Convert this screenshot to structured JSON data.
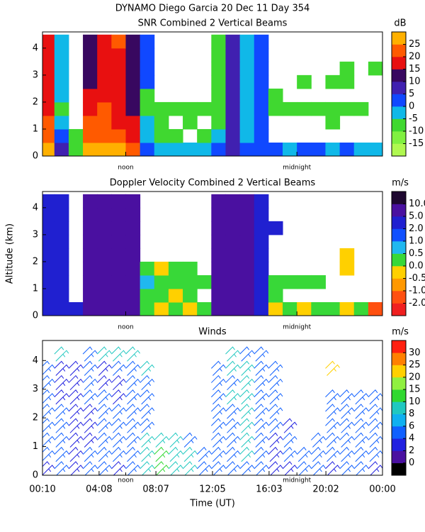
{
  "title": "DYNAMO Diego Garcia  20 Dec 11 Day 354",
  "chart_data": [
    {
      "type": "heatmap",
      "title": "SNR Combined 2 Vertical Beams",
      "units": "dB",
      "x": [
        0.5,
        1.5,
        2.5,
        3.5,
        4.5,
        5.5,
        6.5,
        7.5,
        8.5,
        9.5,
        10.5,
        11.5,
        12.5,
        13.5,
        14.5,
        15.5,
        16.5,
        17.5,
        18.5,
        19.5,
        20.5,
        21.5,
        22.5,
        23.5
      ],
      "altitudes": [
        0.25,
        0.75,
        1.25,
        1.75,
        2.25,
        2.75,
        3.25,
        3.75,
        4.25
      ],
      "values": [
        [
          25,
          5,
          -10,
          25,
          25,
          25,
          20,
          0,
          -5,
          -5,
          -5,
          -5,
          0,
          5,
          0,
          0,
          0,
          -5,
          0,
          0,
          -5,
          0,
          -5,
          -5
        ],
        [
          20,
          0,
          -10,
          20,
          20,
          20,
          15,
          -5,
          -10,
          -10,
          null,
          -10,
          -5,
          5,
          -5,
          0,
          null,
          null,
          null,
          null,
          null,
          null,
          null,
          null
        ],
        [
          20,
          -5,
          null,
          20,
          20,
          15,
          15,
          -5,
          -10,
          null,
          -10,
          null,
          -10,
          5,
          -5,
          0,
          null,
          null,
          null,
          null,
          -10,
          null,
          null,
          null
        ],
        [
          15,
          -10,
          null,
          15,
          20,
          15,
          10,
          -10,
          -10,
          -10,
          -10,
          -10,
          -10,
          5,
          -5,
          0,
          -10,
          -10,
          -10,
          -10,
          -10,
          -10,
          -10,
          null
        ],
        [
          15,
          -5,
          null,
          15,
          15,
          15,
          10,
          -10,
          null,
          null,
          null,
          null,
          -10,
          5,
          -5,
          0,
          -10,
          null,
          null,
          null,
          null,
          null,
          null,
          null
        ],
        [
          15,
          -5,
          null,
          10,
          15,
          15,
          10,
          0,
          null,
          null,
          null,
          null,
          -10,
          5,
          -5,
          0,
          null,
          null,
          -10,
          null,
          -10,
          -10,
          null,
          null
        ],
        [
          15,
          -5,
          null,
          10,
          15,
          15,
          10,
          0,
          null,
          null,
          null,
          null,
          -10,
          5,
          -5,
          0,
          null,
          null,
          null,
          null,
          null,
          -10,
          null,
          -10
        ],
        [
          15,
          -5,
          null,
          10,
          15,
          15,
          10,
          0,
          null,
          null,
          null,
          null,
          -10,
          5,
          -5,
          0,
          null,
          null,
          null,
          null,
          null,
          null,
          null,
          null
        ],
        [
          15,
          -5,
          null,
          10,
          15,
          20,
          10,
          0,
          null,
          null,
          null,
          null,
          -10,
          5,
          -5,
          0,
          null,
          null,
          null,
          null,
          null,
          null,
          null,
          null
        ]
      ],
      "xlim": [
        0.1667,
        24
      ],
      "ylim": [
        0,
        4.6
      ],
      "xticks": [
        {
          "value": 6,
          "label": "noon"
        },
        {
          "value": 18,
          "label": "midnight"
        }
      ],
      "yticks": [
        0,
        1,
        2,
        3,
        4
      ],
      "colorbar": {
        "ticks": [
          -15,
          -10,
          -5,
          0,
          5,
          10,
          15,
          20,
          25
        ],
        "colors": [
          "#b0f850",
          "#80f040",
          "#40d830",
          "#10b8e8",
          "#1048ff",
          "#4020b0",
          "#380860",
          "#e81010",
          "#ff5a00",
          "#ffb000"
        ]
      }
    },
    {
      "type": "heatmap",
      "title": "Doppler Velocity Combined 2 Vertical Beams",
      "units": "m/s",
      "ylabel": "Altitude (km)",
      "x": [
        0.5,
        1.5,
        2.5,
        3.5,
        4.5,
        5.5,
        6.5,
        7.5,
        8.5,
        9.5,
        10.5,
        11.5,
        12.5,
        13.5,
        14.5,
        15.5,
        16.5,
        17.5,
        18.5,
        19.5,
        20.5,
        21.5,
        22.5,
        23.5
      ],
      "altitudes": [
        0.25,
        0.75,
        1.25,
        1.75,
        2.25,
        2.75,
        3.25,
        3.75,
        4.25
      ],
      "values": [
        [
          3,
          3,
          3,
          7,
          7,
          7,
          7,
          0.25,
          -0.25,
          0.25,
          -0.25,
          0.25,
          7,
          7,
          7,
          3,
          -0.25,
          0.25,
          -0.25,
          0.25,
          0.25,
          -0.25,
          0.25,
          -1.5
        ],
        [
          3,
          3,
          null,
          7,
          7,
          7,
          7,
          0.25,
          0.25,
          -0.25,
          0.25,
          null,
          7,
          7,
          7,
          3,
          0.25,
          null,
          null,
          null,
          null,
          null,
          null,
          null
        ],
        [
          3,
          3,
          null,
          7,
          7,
          7,
          7,
          0.75,
          0.25,
          0.25,
          0.25,
          0.25,
          7,
          7,
          7,
          3,
          0.25,
          0.25,
          0.25,
          0.25,
          null,
          null,
          null,
          null
        ],
        [
          3,
          3,
          null,
          7,
          7,
          7,
          7,
          0.25,
          -0.25,
          0.25,
          0.25,
          null,
          7,
          7,
          7,
          3,
          null,
          null,
          null,
          null,
          null,
          -0.25,
          null,
          null
        ],
        [
          3,
          3,
          null,
          7,
          7,
          7,
          7,
          null,
          null,
          null,
          null,
          null,
          7,
          7,
          7,
          3,
          null,
          null,
          null,
          null,
          null,
          -0.25,
          null,
          null
        ],
        [
          3,
          3,
          null,
          7,
          7,
          7,
          7,
          null,
          null,
          null,
          null,
          null,
          7,
          7,
          7,
          3,
          null,
          null,
          null,
          null,
          null,
          null,
          null,
          null
        ],
        [
          3,
          3,
          null,
          7,
          7,
          7,
          7,
          null,
          null,
          null,
          null,
          null,
          7,
          7,
          7,
          3,
          3,
          null,
          null,
          null,
          null,
          null,
          null,
          null
        ],
        [
          3,
          3,
          null,
          7,
          7,
          7,
          7,
          null,
          null,
          null,
          null,
          null,
          7,
          7,
          7,
          3,
          null,
          null,
          null,
          null,
          null,
          null,
          null,
          null
        ],
        [
          3,
          3,
          null,
          7,
          7,
          7,
          7,
          null,
          null,
          null,
          null,
          null,
          7,
          7,
          7,
          3,
          null,
          null,
          null,
          null,
          null,
          null,
          null,
          null
        ]
      ],
      "xlim": [
        0.1667,
        24
      ],
      "ylim": [
        0,
        4.6
      ],
      "xticks": [
        {
          "value": 6,
          "label": "noon"
        },
        {
          "value": 18,
          "label": "midnight"
        }
      ],
      "yticks": [
        0,
        1,
        2,
        3,
        4
      ],
      "colorbar": {
        "ticks": [
          {
            "value": -2,
            "label": "-2.0"
          },
          {
            "value": -1,
            "label": "-1.0"
          },
          -0.5,
          {
            "value": 0,
            "label": "0.0"
          },
          0.5,
          {
            "value": 1,
            "label": "1.0"
          },
          {
            "value": 2,
            "label": "2.0"
          },
          {
            "value": 5,
            "label": "5.0"
          },
          {
            "value": 10,
            "label": "10.0"
          }
        ],
        "colors": [
          "#f02020",
          "#ff5010",
          "#ff9800",
          "#ffd000",
          "#38d838",
          "#20b8f0",
          "#1050ff",
          "#2020d0",
          "#4a10a0",
          "#1e0830"
        ]
      }
    },
    {
      "type": "barbs",
      "title": "Winds",
      "units": "m/s",
      "xlabel": "Time (UT)",
      "x": [
        0.5,
        1.5,
        2.5,
        3.5,
        4.5,
        5.5,
        6.5,
        7.5,
        8.5,
        9.5,
        10.5,
        11.5,
        12.5,
        13.5,
        14.5,
        15.5,
        16.5,
        17.5,
        18.5,
        19.5,
        20.5,
        21.5,
        22.5,
        23.5
      ],
      "altitudes": [
        0.25,
        0.75,
        1.25,
        1.75,
        2.25,
        2.75,
        3.25,
        3.75,
        4.25
      ],
      "values": [
        [
          3,
          5,
          3,
          5,
          5,
          3,
          5,
          9,
          12,
          9,
          9,
          5,
          5,
          5,
          5,
          5,
          3,
          3,
          5,
          5,
          3,
          5,
          5,
          3
        ],
        [
          5,
          5,
          3,
          5,
          5,
          5,
          5,
          9,
          12,
          9,
          9,
          5,
          5,
          5,
          9,
          5,
          3,
          5,
          5,
          5,
          5,
          5,
          5,
          5
        ],
        [
          5,
          5,
          3,
          3,
          5,
          5,
          5,
          9,
          9,
          9,
          5,
          null,
          5,
          5,
          9,
          5,
          3,
          5,
          null,
          5,
          5,
          5,
          5,
          5
        ],
        [
          5,
          5,
          3,
          3,
          5,
          5,
          5,
          5,
          null,
          null,
          null,
          null,
          5,
          5,
          9,
          5,
          5,
          3,
          null,
          null,
          5,
          5,
          5,
          5
        ],
        [
          5,
          5,
          3,
          3,
          5,
          5,
          5,
          5,
          null,
          null,
          null,
          null,
          5,
          5,
          9,
          5,
          5,
          null,
          null,
          null,
          5,
          5,
          5,
          5
        ],
        [
          5,
          3,
          3,
          5,
          5,
          3,
          5,
          5,
          null,
          null,
          null,
          null,
          5,
          9,
          9,
          5,
          5,
          null,
          null,
          null,
          5,
          5,
          5,
          5
        ],
        [
          5,
          3,
          3,
          5,
          3,
          3,
          5,
          5,
          null,
          null,
          null,
          null,
          5,
          5,
          9,
          5,
          5,
          null,
          null,
          null,
          null,
          null,
          null,
          null
        ],
        [
          5,
          3,
          3,
          5,
          3,
          5,
          5,
          9,
          null,
          null,
          null,
          null,
          5,
          9,
          9,
          5,
          5,
          null,
          null,
          null,
          22,
          null,
          null,
          null
        ],
        [
          null,
          9,
          null,
          5,
          9,
          9,
          9,
          null,
          null,
          null,
          null,
          null,
          null,
          9,
          5,
          5,
          null,
          null,
          null,
          null,
          null,
          null,
          null,
          null
        ]
      ],
      "xlim": [
        0.1667,
        24
      ],
      "ylim": [
        0,
        4.7
      ],
      "xticks": [
        {
          "value": 0.1667,
          "label": "00:10"
        },
        {
          "value": 4.133,
          "label": "04:08"
        },
        {
          "value": 8.117,
          "label": "08:07"
        },
        {
          "value": 12.083,
          "label": "12:05"
        },
        {
          "value": 16.05,
          "label": "16:03"
        },
        {
          "value": 20.033,
          "label": "20:02"
        },
        {
          "value": 24,
          "label": "00:00"
        }
      ],
      "xticks_local": [
        {
          "value": 6,
          "label": "noon"
        },
        {
          "value": 18,
          "label": "midnight"
        }
      ],
      "yticks": [
        0,
        1,
        2,
        3,
        4
      ],
      "colorbar": {
        "ticks": [
          0,
          2,
          4,
          6,
          8,
          10,
          15,
          20,
          25,
          30
        ],
        "colors": [
          "#000000",
          "#4a10a0",
          "#2020e0",
          "#1060ff",
          "#10b0f0",
          "#20c8c0",
          "#30d830",
          "#90f040",
          "#ffd000",
          "#ff8000",
          "#ff2010"
        ]
      }
    }
  ]
}
